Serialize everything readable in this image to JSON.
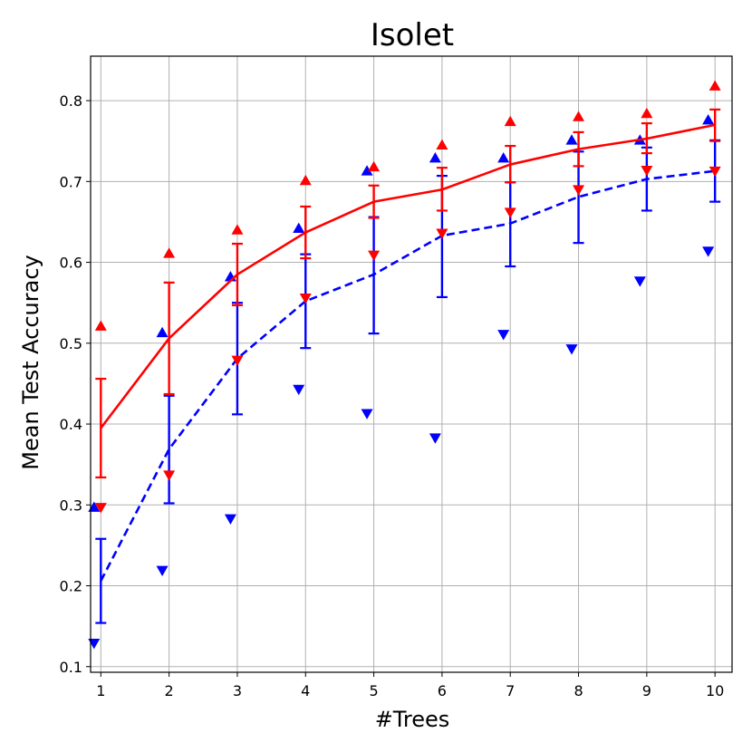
{
  "chart_data": {
    "type": "line",
    "title": "Isolet",
    "xlabel": "#Trees",
    "ylabel": "Mean Test Accuracy",
    "x": [
      1,
      2,
      3,
      4,
      5,
      6,
      7,
      8,
      9,
      10
    ],
    "xlim": [
      0.85,
      10.25
    ],
    "ylim": [
      0.093,
      0.855
    ],
    "xticks": [
      "1",
      "2",
      "3",
      "4",
      "5",
      "6",
      "7",
      "8",
      "9",
      "10"
    ],
    "yticks": [
      "0.1",
      "0.2",
      "0.3",
      "0.4",
      "0.5",
      "0.6",
      "0.7",
      "0.8"
    ],
    "grid": true,
    "series": [
      {
        "color": "#ff0000",
        "line_style": "solid",
        "marker_offset": 0.0,
        "mean": [
          0.395,
          0.506,
          0.585,
          0.637,
          0.675,
          0.69,
          0.721,
          0.74,
          0.753,
          0.77
        ],
        "err_low": [
          0.334,
          0.437,
          0.547,
          0.605,
          0.655,
          0.664,
          0.699,
          0.719,
          0.735,
          0.75
        ],
        "err_high": [
          0.456,
          0.575,
          0.623,
          0.669,
          0.695,
          0.717,
          0.744,
          0.761,
          0.772,
          0.789
        ],
        "max": [
          0.521,
          0.611,
          0.64,
          0.701,
          0.718,
          0.745,
          0.774,
          0.78,
          0.784,
          0.818
        ],
        "min": [
          0.297,
          0.337,
          0.479,
          0.556,
          0.609,
          0.636,
          0.662,
          0.69,
          0.714,
          0.713
        ]
      },
      {
        "color": "#0000ff",
        "line_style": "dashed",
        "marker_offset": -0.1,
        "mean": [
          0.206,
          0.369,
          0.481,
          0.552,
          0.585,
          0.633,
          0.648,
          0.681,
          0.703,
          0.713
        ],
        "err_low": [
          0.154,
          0.302,
          0.412,
          0.494,
          0.512,
          0.557,
          0.595,
          0.624,
          0.664,
          0.675
        ],
        "err_high": [
          0.258,
          0.435,
          0.55,
          0.61,
          0.656,
          0.707,
          0.699,
          0.737,
          0.742,
          0.751
        ],
        "max": [
          0.297,
          0.513,
          0.582,
          0.642,
          0.713,
          0.729,
          0.729,
          0.751,
          0.751,
          0.776
        ],
        "min": [
          0.129,
          0.219,
          0.283,
          0.443,
          0.413,
          0.383,
          0.511,
          0.493,
          0.577,
          0.614
        ]
      }
    ]
  }
}
